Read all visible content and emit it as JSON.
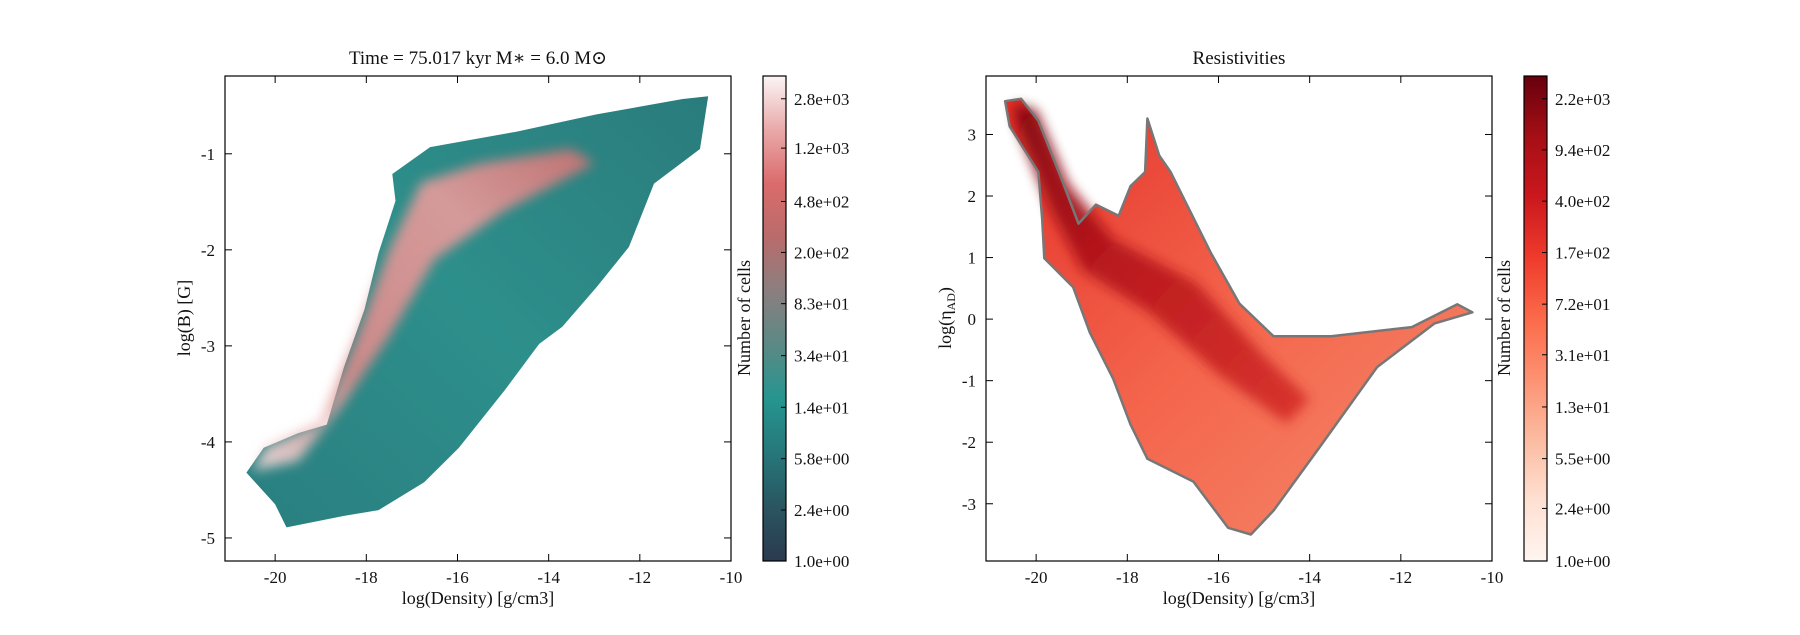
{
  "chart_data": [
    {
      "type": "heatmap",
      "title": "Time = 75.017 kyr    M∗ = 6.0 M⊙",
      "xlabel": "log(Density) [g/cm3]",
      "ylabel": "log(B) [G]",
      "xlim": [
        -21.1,
        -10
      ],
      "ylim": [
        -5.24,
        -0.19
      ],
      "xticks": [
        "-20",
        "-18",
        "-16",
        "-14",
        "-12",
        "-10"
      ],
      "xtick_values": [
        -20,
        -18,
        -16,
        -14,
        -12,
        -10
      ],
      "yticks": [
        "-1",
        "-2",
        "-3",
        "-4",
        "-5"
      ],
      "ytick_values": [
        -1,
        -2,
        -3,
        -4,
        -5
      ],
      "colorbar": {
        "label": "Number of cells",
        "scale": "log",
        "range": [
          1,
          4140
        ],
        "ticks": [
          "1.0e+00",
          "2.4e+00",
          "5.8e+00",
          "1.4e+01",
          "3.4e+01",
          "8.3e+01",
          "2.0e+02",
          "4.8e+02",
          "1.2e+03",
          "2.8e+03"
        ],
        "tick_values": [
          1.0,
          2.4,
          5.8,
          14,
          34,
          83,
          200,
          480,
          1200,
          2800
        ],
        "colors": [
          "#2b3a4f",
          "#2a5560",
          "#26777a",
          "#25958f",
          "#5b8985",
          "#8a7f7f",
          "#b96b6b",
          "#db6b6b",
          "#e9a9a9",
          "#fcf5f5"
        ]
      },
      "occupied_region": [
        [
          -20.63,
          -4.32
        ],
        [
          -20.25,
          -4.06
        ],
        [
          -19.5,
          -3.91
        ],
        [
          -18.87,
          -3.82
        ],
        [
          -18.49,
          -3.22
        ],
        [
          -18.04,
          -2.62
        ],
        [
          -17.73,
          -2.03
        ],
        [
          -17.36,
          -1.49
        ],
        [
          -17.43,
          -1.21
        ],
        [
          -16.6,
          -0.93
        ],
        [
          -14.71,
          -0.77
        ],
        [
          -12.95,
          -0.59
        ],
        [
          -11.06,
          -0.43
        ],
        [
          -10.5,
          -0.4
        ],
        [
          -10.68,
          -0.95
        ],
        [
          -11.69,
          -1.31
        ],
        [
          -12.24,
          -1.97
        ],
        [
          -12.95,
          -2.39
        ],
        [
          -13.7,
          -2.8
        ],
        [
          -14.21,
          -2.98
        ],
        [
          -14.96,
          -3.46
        ],
        [
          -15.97,
          -4.06
        ],
        [
          -16.73,
          -4.42
        ],
        [
          -17.73,
          -4.71
        ],
        [
          -18.49,
          -4.77
        ],
        [
          -19.75,
          -4.89
        ],
        [
          -20,
          -4.65
        ]
      ],
      "high_count_region": [
        [
          -20.5,
          -4.3
        ],
        [
          -19.5,
          -4.2
        ],
        [
          -18.5,
          -3.6
        ],
        [
          -17.5,
          -2.9
        ],
        [
          -16.5,
          -2.1
        ],
        [
          -15,
          -1.6
        ],
        [
          -13,
          -1.1
        ],
        [
          -13.5,
          -0.95
        ],
        [
          -15.5,
          -1.1
        ],
        [
          -16.8,
          -1.3
        ],
        [
          -17.5,
          -2.0
        ],
        [
          -18.2,
          -2.9
        ],
        [
          -19,
          -3.8
        ],
        [
          -20.2,
          -4.05
        ]
      ]
    },
    {
      "type": "heatmap",
      "title": "Resistivities",
      "xlabel": "log(Density) [g/cm3]",
      "ylabel": {
        "main": "log(η",
        "sub": "AD",
        "close": ")"
      },
      "xlim": [
        -21.1,
        -10
      ],
      "ylim": [
        -3.93,
        3.95
      ],
      "xticks": [
        "-20",
        "-18",
        "-16",
        "-14",
        "-12",
        "-10"
      ],
      "xtick_values": [
        -20,
        -18,
        -16,
        -14,
        -12,
        -10
      ],
      "yticks": [
        "3",
        "2",
        "1",
        "0",
        "-1",
        "-2",
        "-3"
      ],
      "ytick_values": [
        3,
        2,
        1,
        0,
        -1,
        -2,
        -3
      ],
      "colorbar": {
        "label": "Number of cells",
        "scale": "log",
        "range": [
          1,
          3215
        ],
        "ticks": [
          "1.0e+00",
          "2.4e+00",
          "5.5e+00",
          "1.3e+01",
          "3.1e+01",
          "7.2e+01",
          "1.7e+02",
          "4.0e+02",
          "9.4e+02",
          "2.2e+03"
        ],
        "tick_values": [
          1.0,
          2.4,
          5.5,
          13,
          31,
          72,
          170,
          400,
          940,
          2200
        ],
        "colors": [
          "#fff5f0",
          "#fee0d2",
          "#fcbba1",
          "#fc9272",
          "#fb6a4a",
          "#ef3b2c",
          "#cb181d",
          "#a50f15",
          "#67000d"
        ]
      },
      "contour_color": "#777777",
      "occupied_region": [
        [
          -20.68,
          3.54
        ],
        [
          -20.33,
          3.58
        ],
        [
          -19.95,
          3.22
        ],
        [
          -19.45,
          2.29
        ],
        [
          -19.07,
          1.55
        ],
        [
          -18.69,
          1.86
        ],
        [
          -18.19,
          1.68
        ],
        [
          -17.93,
          2.16
        ],
        [
          -17.61,
          2.39
        ],
        [
          -17.56,
          3.26
        ],
        [
          -17.3,
          2.66
        ],
        [
          -17.05,
          2.39
        ],
        [
          -16.17,
          1.08
        ],
        [
          -15.54,
          0.25
        ],
        [
          -14.79,
          -0.28
        ],
        [
          -13.53,
          -0.28
        ],
        [
          -11.76,
          -0.13
        ],
        [
          -10.76,
          0.24
        ],
        [
          -10.43,
          0.11
        ],
        [
          -11.26,
          -0.07
        ],
        [
          -12.52,
          -0.78
        ],
        [
          -13.78,
          -2.08
        ],
        [
          -14.79,
          -3.11
        ],
        [
          -15.29,
          -3.5
        ],
        [
          -15.79,
          -3.39
        ],
        [
          -16.55,
          -2.64
        ],
        [
          -17.56,
          -2.27
        ],
        [
          -17.93,
          -1.71
        ],
        [
          -18.31,
          -0.97
        ],
        [
          -18.82,
          -0.22
        ],
        [
          -19.19,
          0.52
        ],
        [
          -19.82,
          0.99
        ],
        [
          -19.87,
          1.64
        ],
        [
          -19.95,
          2.39
        ],
        [
          -20.58,
          3.13
        ]
      ],
      "high_count_region": [
        [
          -20.5,
          3.5
        ],
        [
          -20.0,
          3.4
        ],
        [
          -19.3,
          2.2
        ],
        [
          -18.3,
          1.3
        ],
        [
          -16.5,
          0.6
        ],
        [
          -15,
          -0.6
        ],
        [
          -14,
          -1.3
        ],
        [
          -14.5,
          -1.7
        ],
        [
          -16,
          -0.9
        ],
        [
          -17.5,
          0.1
        ],
        [
          -19,
          0.8
        ],
        [
          -19.7,
          1.8
        ],
        [
          -20.4,
          3.1
        ]
      ]
    }
  ]
}
